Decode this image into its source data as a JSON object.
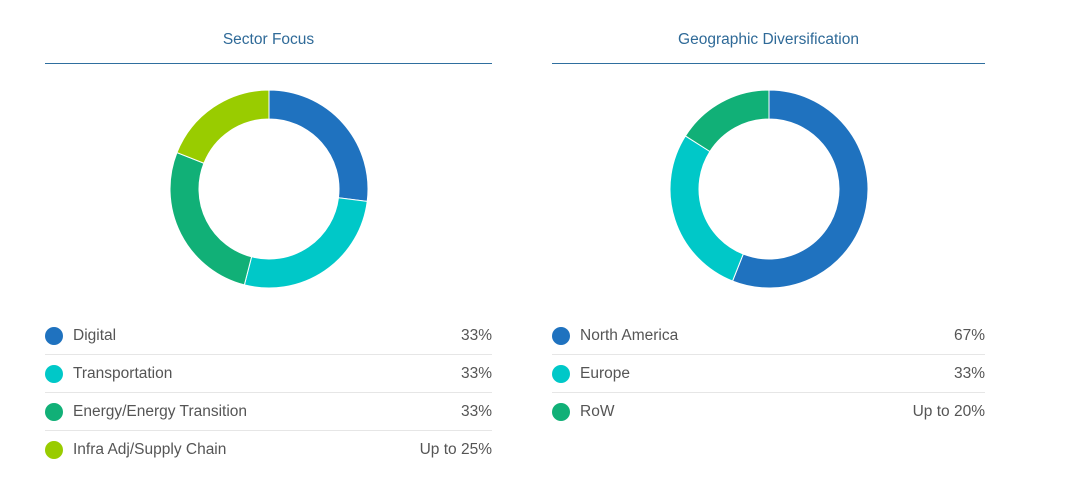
{
  "chart_data": [
    {
      "type": "pie",
      "title": "Sector Focus",
      "donut": true,
      "categories": [
        "Digital",
        "Transportation",
        "Energy/Energy Transition",
        "Infra Adj/Supply Chain"
      ],
      "labels": [
        "33%",
        "33%",
        "33%",
        "Up to 25%"
      ],
      "values": [
        27,
        27,
        27,
        19
      ],
      "colors": [
        "#1f72bf",
        "#00c8c8",
        "#11b077",
        "#99cc00"
      ]
    },
    {
      "type": "pie",
      "title": "Geographic Diversification",
      "donut": true,
      "categories": [
        "North America",
        "Europe",
        "RoW"
      ],
      "labels": [
        "67%",
        "33%",
        "Up to 20%"
      ],
      "values": [
        56,
        28,
        16
      ],
      "colors": [
        "#1f72bf",
        "#00c8c8",
        "#11b077"
      ]
    }
  ]
}
